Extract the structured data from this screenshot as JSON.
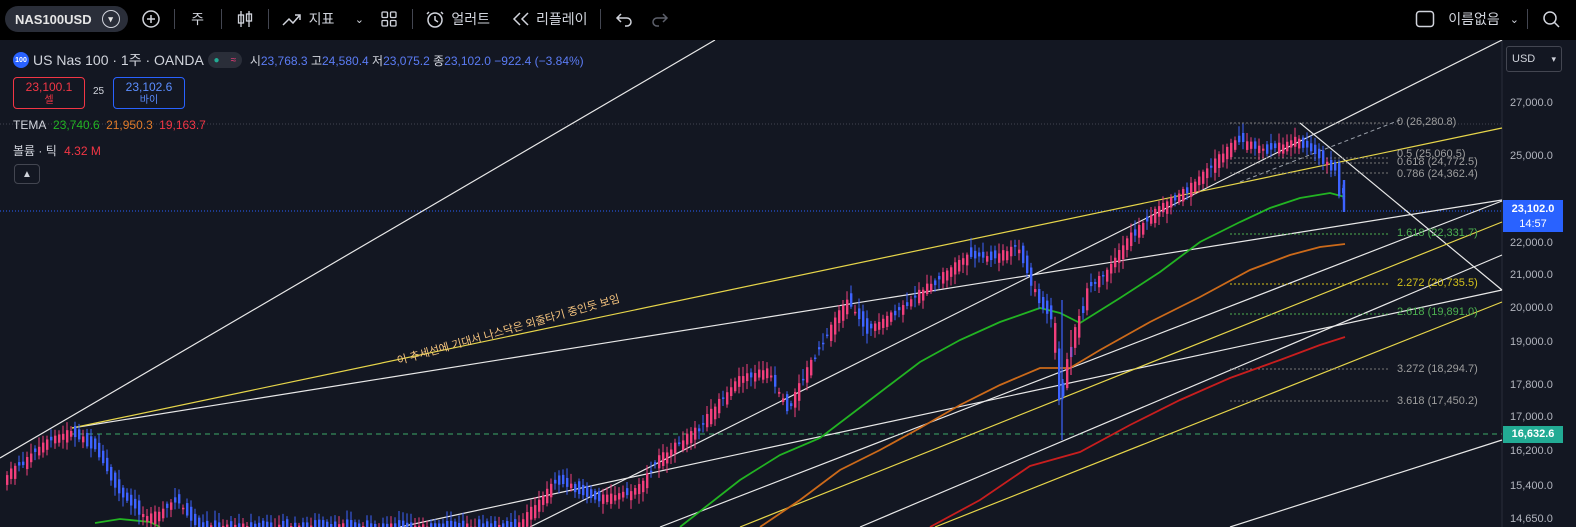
{
  "toolbar": {
    "symbol": "NAS100USD",
    "interval": "주",
    "indicators_label": "지표",
    "alert_label": "얼러트",
    "replay_label": "리플레이",
    "layout_name": "이름없음"
  },
  "legend": {
    "logo_text": "100",
    "title": "US Nas 100 · 1주 · OANDA",
    "open_label": "시",
    "open": "23,768.3",
    "high_label": "고",
    "high": "24,580.4",
    "low_label": "저",
    "low": "23,075.2",
    "close_label": "종",
    "close": "23,102.0",
    "change": "−922.4 (−3.84%)"
  },
  "trade": {
    "sell_price": "23,100.1",
    "sell_label": "셀",
    "spread": "25",
    "buy_price": "23,102.6",
    "buy_label": "바이"
  },
  "tema": {
    "label": "TEMA",
    "v1": "23,740.6",
    "v2": "21,950.3",
    "v3": "19,163.7"
  },
  "volume": {
    "label": "볼륨 · 틱",
    "value": "4.32 M"
  },
  "price_axis": {
    "currency": "USD",
    "labels": [
      "27,000.0",
      "25,000.0",
      "22,000.0",
      "21,000.0",
      "20,000.0",
      "19,000.0",
      "17,800.0",
      "17,000.0",
      "16,200.0",
      "15,400.0",
      "14,650.0"
    ],
    "current_price": "23,102.0",
    "countdown": "14:57",
    "marker_price": "16,632.6"
  },
  "fib_levels": [
    {
      "label": "0 (26,280.8)",
      "color": "#9e9e9e"
    },
    {
      "label": "0.5 (25,060.5)",
      "color": "#9e9e9e"
    },
    {
      "label": "0.618 (24,772.5)",
      "color": "#9e9e9e"
    },
    {
      "label": "0.786 (24,362.4)",
      "color": "#9e9e9e"
    },
    {
      "label": "1.618 (22,331.7)",
      "color": "#4caf50"
    },
    {
      "label": "2.272 (20,735.5)",
      "color": "#d4c21c"
    },
    {
      "label": "2.618 (19,891.0)",
      "color": "#4caf50"
    },
    {
      "label": "3.272 (18,294.7)",
      "color": "#9e9e9e"
    },
    {
      "label": "3.618 (17,450.2)",
      "color": "#9e9e9e"
    }
  ],
  "annotation": "이 추세선에 기대서 나스닥은 외줄타기 중인듯 보임",
  "colors": {
    "up": "#f23f7c",
    "down": "#3d63ff",
    "tema1": "#22b422",
    "tema2": "#cc6a1a",
    "tema3": "#c81e1e",
    "trend_yellow": "#e6d54a",
    "accent": "#2962ff"
  }
}
